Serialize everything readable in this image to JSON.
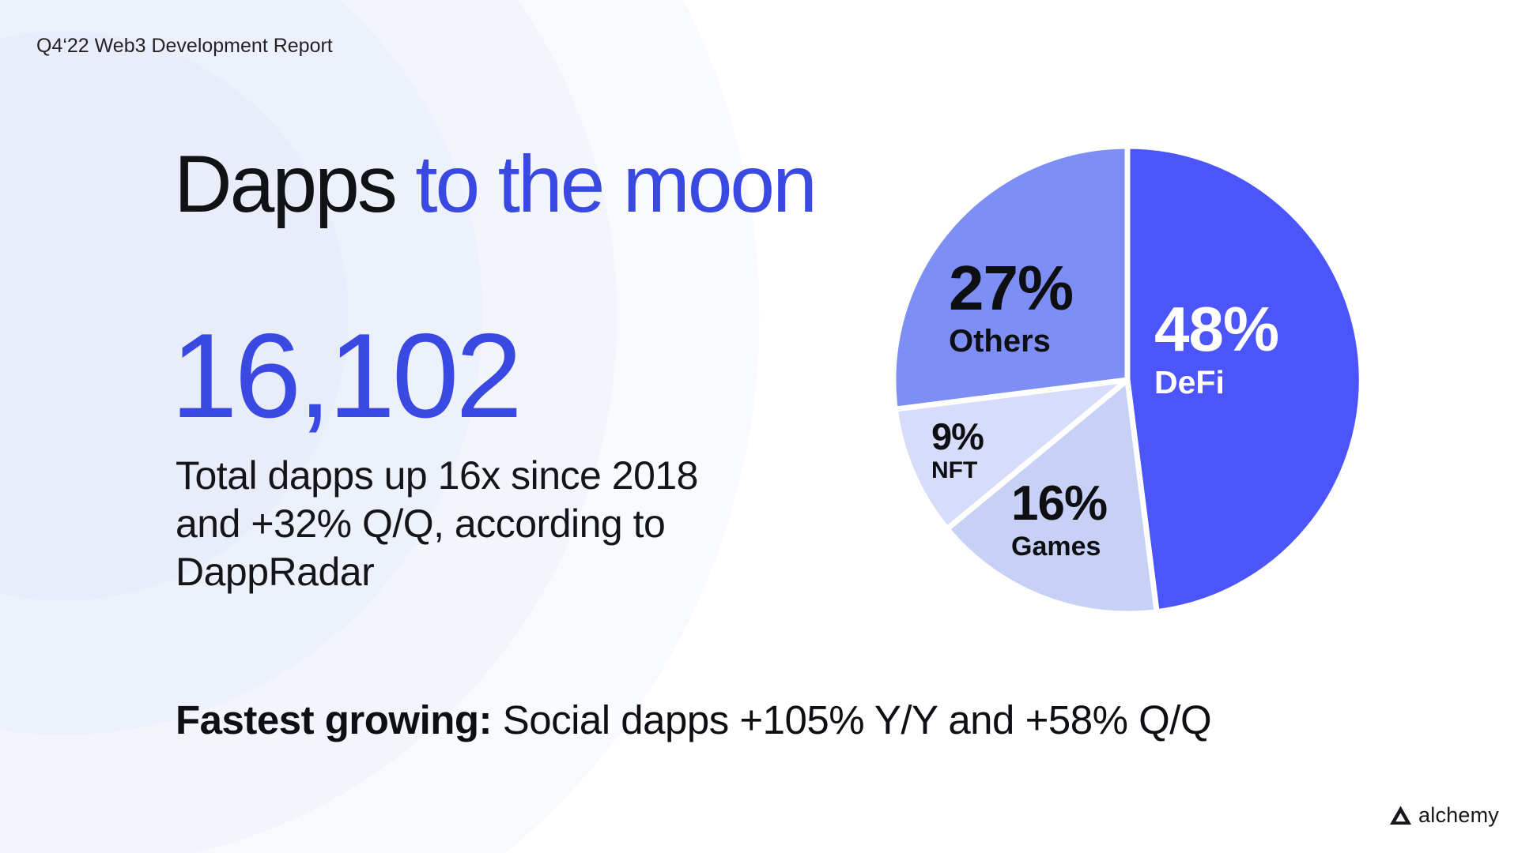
{
  "header": {
    "report_label": "Q4‘22 Web3 Development Report"
  },
  "hero": {
    "title_black": "Dapps ",
    "title_blue": "to the moon",
    "stat_value": "16,102",
    "stat_line1": "Total dapps up 16x since 2018",
    "stat_line2": "and +32% Q/Q, according to",
    "stat_line3": "DappRadar"
  },
  "footnote": {
    "label_bold": "Fastest growing:",
    "label_rest": " Social dapps +105% Y/Y and +58% Q/Q"
  },
  "brand": {
    "logo_icon": "alchemy-triangle-logo",
    "wordmark": "alchemy"
  },
  "colors": {
    "accent_text_blue": "#3b49e3",
    "slice_defi": "#4b55fa",
    "slice_others": "#7d8ff5",
    "slice_games": "#c7d0f5",
    "slice_nft": "#d6dcf9",
    "slice_gap": "#ffffff"
  },
  "chart_data": {
    "type": "pie",
    "direction": "clockwise",
    "start_angle_deg": 0,
    "gridlines": false,
    "legend": "labels-on-slices",
    "segments": [
      {
        "name": "DeFi",
        "value_pct": 48,
        "pct_label": "48%",
        "color": "#4b55fa",
        "label_color": "#ffffff"
      },
      {
        "name": "Games",
        "value_pct": 16,
        "pct_label": "16%",
        "color": "#c7d0f5",
        "label_color": "#0e0f12"
      },
      {
        "name": "NFT",
        "value_pct": 9,
        "pct_label": "9%",
        "color": "#d6dcf9",
        "label_color": "#0e0f12"
      },
      {
        "name": "Others",
        "value_pct": 27,
        "pct_label": "27%",
        "color": "#7d8ff5",
        "label_color": "#0e0f12"
      }
    ]
  }
}
